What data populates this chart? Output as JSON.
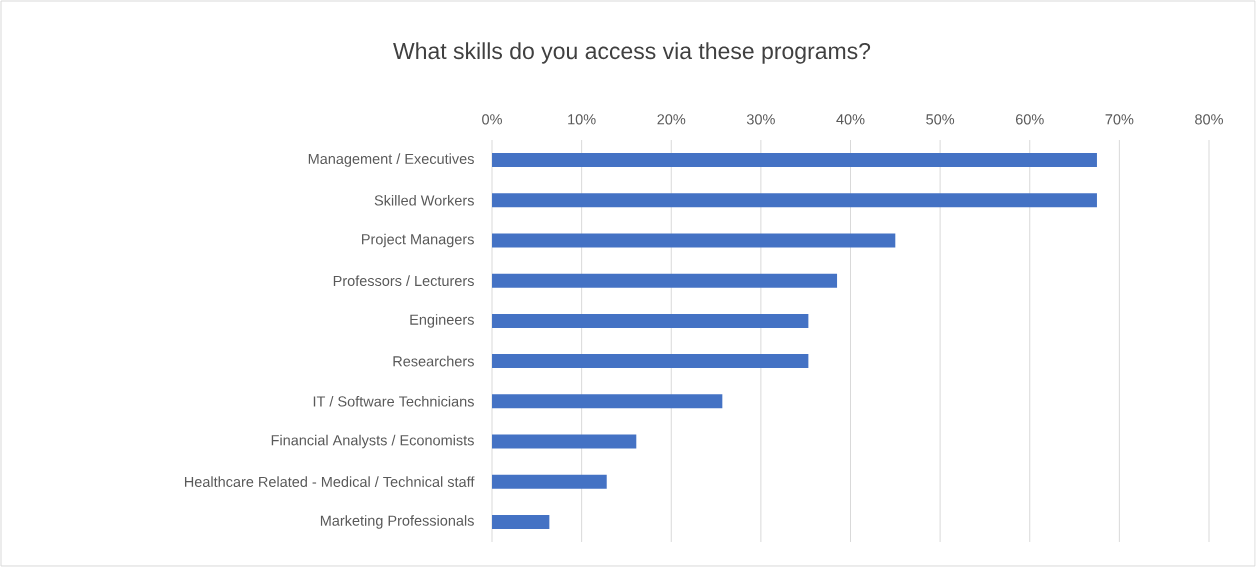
{
  "chart_data": {
    "type": "bar",
    "orientation": "horizontal",
    "title": "What skills do you access via these programs?",
    "categories": [
      "Management / Executives",
      "Skilled Workers",
      "Project Managers",
      "Professors / Lecturers",
      "Engineers",
      "Researchers",
      "IT / Software Technicians",
      "Financial Analysts / Economists",
      "Healthcare Related - Medical / Technical staff",
      "Marketing Professionals"
    ],
    "values": [
      67.5,
      67.5,
      45.0,
      38.5,
      35.3,
      35.3,
      25.7,
      16.1,
      12.8,
      6.4
    ],
    "color": "#4472c4",
    "xlim": [
      0,
      80
    ],
    "xticks": [
      {
        "value": 0,
        "label": "0%"
      },
      {
        "value": 10,
        "label": "10%"
      },
      {
        "value": 20,
        "label": "20%"
      },
      {
        "value": 30,
        "label": "30%"
      },
      {
        "value": 40,
        "label": "40%"
      },
      {
        "value": 50,
        "label": "50%"
      },
      {
        "value": 60,
        "label": "60%"
      },
      {
        "value": 70,
        "label": "70%"
      },
      {
        "value": 80,
        "label": "80%"
      }
    ],
    "grid": "x"
  }
}
